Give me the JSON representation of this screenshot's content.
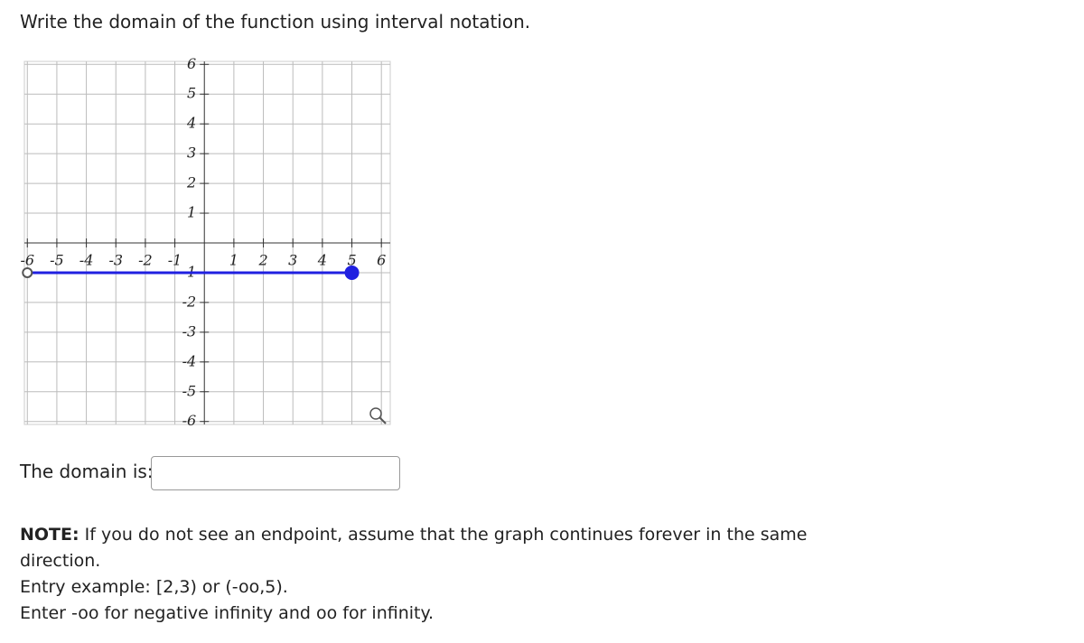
{
  "question": "Write the domain of the function using interval notation.",
  "graph": {
    "xlim": [
      -6.1,
      6.3
    ],
    "ylim": [
      -6.1,
      6.1
    ],
    "xticks": [
      -6,
      -5,
      -4,
      -3,
      -2,
      -1,
      1,
      2,
      3,
      4,
      5,
      6
    ],
    "yticks": [
      -6,
      -5,
      -4,
      -3,
      -2,
      -1,
      1,
      2,
      3,
      4,
      5,
      6
    ],
    "grid": true,
    "segment": {
      "x": [
        -6,
        5
      ],
      "y": [
        -1,
        -1
      ],
      "endpoints": [
        "open",
        "closed"
      ],
      "color": "#2020e0"
    }
  },
  "answer_label": "The domain is:",
  "note_label": "NOTE:",
  "note": "If you do not see an endpoint, assume that the graph continues forever in the same direction.",
  "example": "Entry example: [2,3) or (-oo,5).",
  "infinity_hint": "Enter -oo for negative infinity and oo for infinity."
}
